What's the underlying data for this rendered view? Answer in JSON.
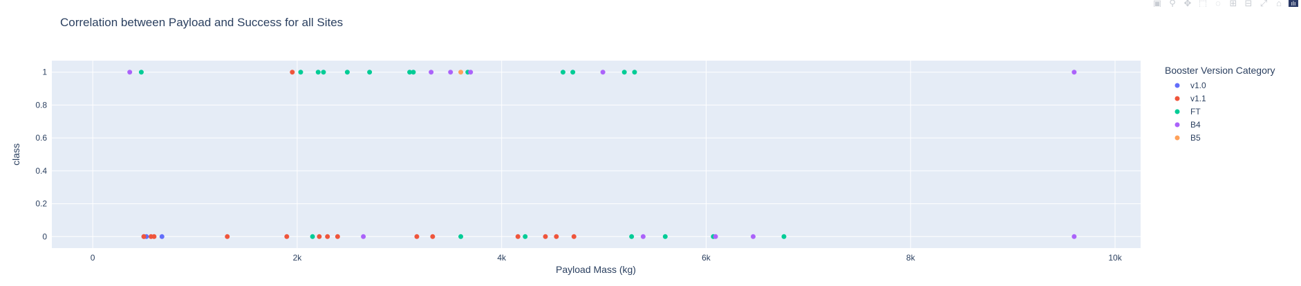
{
  "modebar": {
    "icons": [
      "camera-icon",
      "zoom-icon",
      "pan-icon",
      "box-select-icon",
      "lasso-icon",
      "zoom-in-icon",
      "zoom-out-icon",
      "autoscale-icon",
      "reset-axes-icon",
      "plotly-logo"
    ],
    "glyphs": [
      "▣",
      "⚲",
      "✥",
      "⬚",
      "◌",
      "⊞",
      "⊟",
      "⤢",
      "⌂",
      "ılı"
    ]
  },
  "chart_data": {
    "type": "scatter",
    "title": "Correlation between Payload and Success for all Sites",
    "xlabel": "Payload Mass (kg)",
    "ylabel": "class",
    "xlim": [
      -400,
      10250
    ],
    "ylim": [
      -0.07,
      1.07
    ],
    "xticks": [
      0,
      2000,
      4000,
      6000,
      8000,
      10000
    ],
    "xtick_labels": [
      "0",
      "2k",
      "4k",
      "6k",
      "8k",
      "10k"
    ],
    "yticks": [
      0,
      0.2,
      0.4,
      0.6,
      0.8,
      1
    ],
    "ytick_labels": [
      "0",
      "0.2",
      "0.4",
      "0.6",
      "0.8",
      "1"
    ],
    "grid": true,
    "legend_title": "Booster Version Category",
    "legend_position": "right",
    "series": [
      {
        "name": "v1.0",
        "color": "#636efa",
        "points": [
          [
            500,
            0
          ],
          [
            525,
            0
          ],
          [
            677,
            0
          ]
        ]
      },
      {
        "name": "v1.1",
        "color": "#ef553b",
        "points": [
          [
            500,
            0
          ],
          [
            570,
            0
          ],
          [
            600,
            0
          ],
          [
            1316,
            0
          ],
          [
            1898,
            0
          ],
          [
            1952,
            1
          ],
          [
            2216,
            0
          ],
          [
            2296,
            0
          ],
          [
            2395,
            0
          ],
          [
            3170,
            0
          ],
          [
            3325,
            0
          ],
          [
            4159,
            0
          ],
          [
            4428,
            0
          ],
          [
            4535,
            0
          ],
          [
            4707,
            0
          ]
        ]
      },
      {
        "name": "FT",
        "color": "#00cc96",
        "points": [
          [
            475,
            1
          ],
          [
            2034,
            1
          ],
          [
            2205,
            1
          ],
          [
            2257,
            1
          ],
          [
            2490,
            1
          ],
          [
            2708,
            1
          ],
          [
            3100,
            1
          ],
          [
            3136,
            1
          ],
          [
            3669,
            1
          ],
          [
            4600,
            1
          ],
          [
            4696,
            1
          ],
          [
            5200,
            1
          ],
          [
            5300,
            1
          ],
          [
            2150,
            0
          ],
          [
            3600,
            0
          ],
          [
            4230,
            0
          ],
          [
            5271,
            0
          ],
          [
            5600,
            0
          ],
          [
            6070,
            0
          ],
          [
            6761,
            0
          ]
        ]
      },
      {
        "name": "B4",
        "color": "#ab63fa",
        "points": [
          [
            362,
            1
          ],
          [
            3310,
            1
          ],
          [
            3500,
            1
          ],
          [
            3696,
            1
          ],
          [
            4990,
            1
          ],
          [
            9600,
            1
          ],
          [
            2647,
            0
          ],
          [
            5384,
            0
          ],
          [
            6092,
            0
          ],
          [
            6460,
            0
          ],
          [
            9600,
            0
          ]
        ]
      },
      {
        "name": "B5",
        "color": "#ffa15a",
        "points": [
          [
            3600,
            1
          ]
        ]
      }
    ]
  }
}
